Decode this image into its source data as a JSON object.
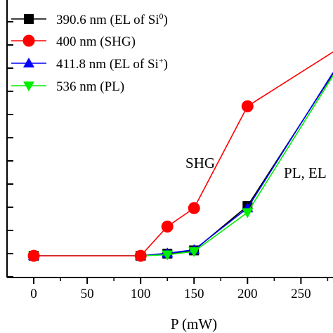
{
  "chart_data": {
    "type": "line",
    "xlabel": "P (mW)",
    "ylabel": "",
    "xlim": [
      -25,
      280
    ],
    "ylim": [
      -1,
      11.8
    ],
    "x_ticks": [
      0,
      50,
      100,
      150,
      200,
      250
    ],
    "x_tick_labels": [
      "0",
      "50",
      "100",
      "150",
      "200",
      "250"
    ],
    "y_tick_count": 12,
    "grid": false,
    "legend_position": "top-left",
    "series": [
      {
        "name": "390.6 nm (EL of Si",
        "name_sup": "0",
        "name_end": ")",
        "color": "#000000",
        "marker": "square",
        "x": [
          0,
          100,
          125,
          150,
          200,
          280
        ],
        "y": [
          0.0,
          0.0,
          0.1,
          0.25,
          2.3,
          8.4
        ]
      },
      {
        "name": "400 nm (SHG)",
        "color": "#ff0000",
        "marker": "circle",
        "x": [
          0,
          100,
          125,
          150,
          200,
          280
        ],
        "y": [
          0.0,
          0.0,
          1.35,
          2.2,
          6.9,
          9.4
        ]
      },
      {
        "name": "411.8 nm (EL of Si",
        "name_sup": "+",
        "name_end": ")",
        "color": "#0000ff",
        "marker": "triangle-up",
        "x": [
          0,
          100,
          125,
          150,
          200,
          280
        ],
        "y": [
          0.0,
          0.0,
          0.12,
          0.28,
          2.2,
          8.45
        ]
      },
      {
        "name": "536 nm (PL)",
        "color": "#00ee00",
        "marker": "triangle-down",
        "x": [
          0,
          100,
          125,
          150,
          200,
          280
        ],
        "y": [
          0.0,
          0.0,
          0.05,
          0.2,
          2.0,
          8.3
        ]
      }
    ],
    "annotations": [
      {
        "text": "SHG",
        "color": "#ff0000",
        "x": 142,
        "y": 4.05
      },
      {
        "text": "PL, EL",
        "color": "#000000",
        "x": 234,
        "y": 3.6
      }
    ]
  }
}
